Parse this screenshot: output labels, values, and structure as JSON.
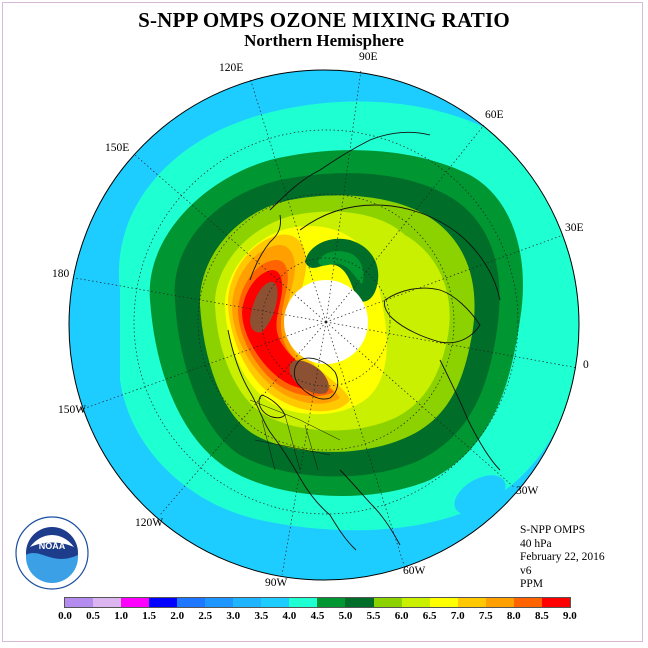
{
  "header": {
    "title": "S-NPP OMPS OZONE MIXING RATIO",
    "subtitle": "Northern Hemisphere"
  },
  "longitude_labels": {
    "lon_90e": "90E",
    "lon_60e": "60E",
    "lon_30e": "30E",
    "lon_0": "0",
    "lon_30w": "30W",
    "lon_60w": "60W",
    "lon_90w": "90W",
    "lon_120w": "120W",
    "lon_150w": "150W",
    "lon_180": "180",
    "lon_150e": "150E",
    "lon_120e": "120E"
  },
  "info": {
    "instrument": "S-NPP OMPS",
    "level": "40 hPa",
    "date": "February 22, 2016",
    "version": "v6",
    "units": "PPM"
  },
  "logo": {
    "text": "NOAA",
    "ring_text": "NATIONAL OCEANIC AND ATMOSPHERIC ADMINISTRATION · U.S. DEPARTMENT OF COMMERCE"
  },
  "colorbar": {
    "ticks": [
      "0.0",
      "0.5",
      "1.0",
      "1.5",
      "2.0",
      "2.5",
      "3.0",
      "3.5",
      "4.0",
      "4.5",
      "5.0",
      "5.5",
      "6.0",
      "6.5",
      "7.0",
      "7.5",
      "8.0",
      "8.5",
      "9.0"
    ],
    "colors": [
      "#b48cf0",
      "#dcb4f0",
      "#ff00ff",
      "#0000ff",
      "#1e78ff",
      "#1e96ff",
      "#1eb4ff",
      "#1ecdff",
      "#1effd2",
      "#009632",
      "#006e28",
      "#8cd200",
      "#c8f000",
      "#ffff00",
      "#ffc800",
      "#ffa000",
      "#ff6400",
      "#ff0000",
      "#8c5032"
    ]
  },
  "map_colors": {
    "background_field": "#1ecdff",
    "no_data_polar": "#ffffff",
    "coastline": "#111111",
    "graticule": "#222222"
  }
}
